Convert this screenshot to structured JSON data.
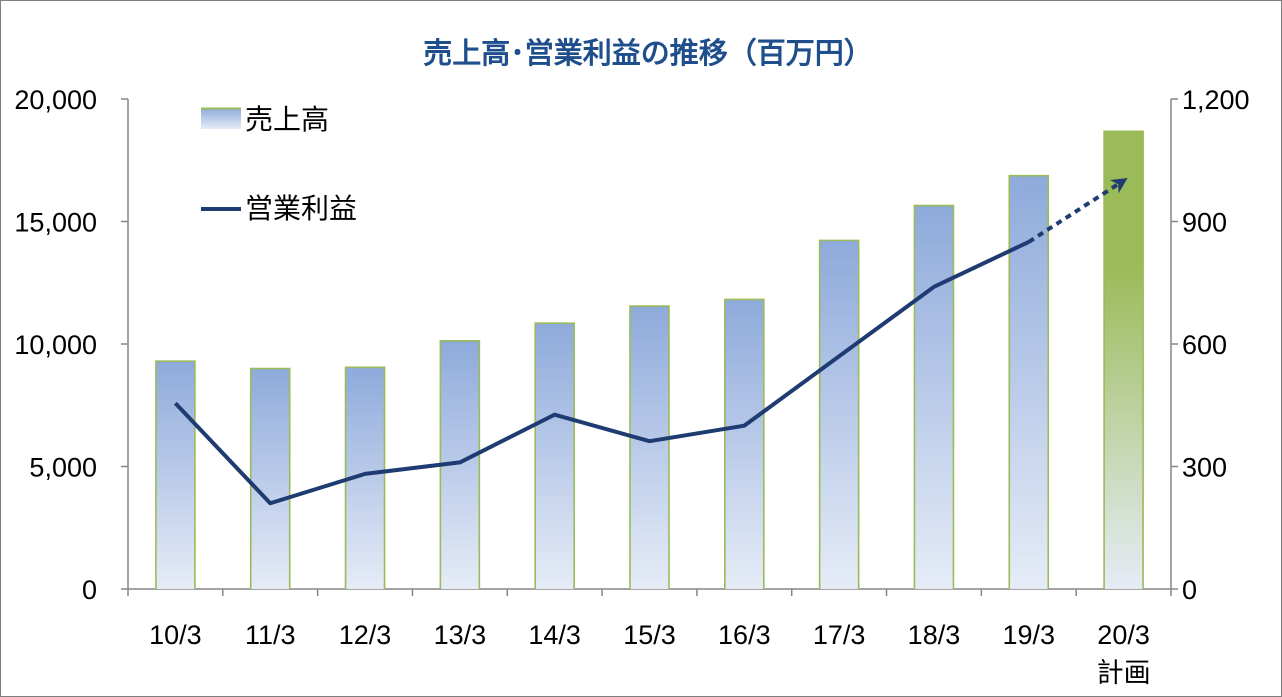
{
  "chart_data": {
    "type": "bar",
    "title": "売上高･営業利益の推移（百万円）",
    "categories": [
      "10/3",
      "11/3",
      "12/3",
      "13/3",
      "14/3",
      "15/3",
      "16/3",
      "17/3",
      "18/3",
      "19/3",
      "20/3"
    ],
    "category_sublabels": [
      "",
      "",
      "",
      "",
      "",
      "",
      "",
      "",
      "",
      "",
      "計画"
    ],
    "series": [
      {
        "name": "売上高",
        "type": "bar",
        "axis": "left",
        "values": [
          9300,
          9000,
          9050,
          10130,
          10850,
          11550,
          11820,
          14230,
          15650,
          16870,
          18680
        ],
        "fill_top_color": "#8eaadb",
        "fill_bottom_color": "#e6ecf7",
        "border_color": "#9bbb59",
        "forecast_fill_top_color": "#9bbb59"
      },
      {
        "name": "営業利益",
        "type": "line",
        "axis": "right",
        "values": [
          455,
          210,
          282,
          310,
          427,
          362,
          400,
          570,
          740,
          850,
          1000
        ],
        "color": "#1f3c72",
        "forecast_from_index": 9
      }
    ],
    "y_left": {
      "min": 0,
      "max": 20000,
      "ticks": [
        "0",
        "5,000",
        "10,000",
        "15,000",
        "20,000"
      ]
    },
    "y_right": {
      "min": 0,
      "max": 1200,
      "ticks": [
        "0",
        "300",
        "600",
        "900",
        "1,200"
      ]
    },
    "grid": false,
    "legend_position": "top-left"
  }
}
